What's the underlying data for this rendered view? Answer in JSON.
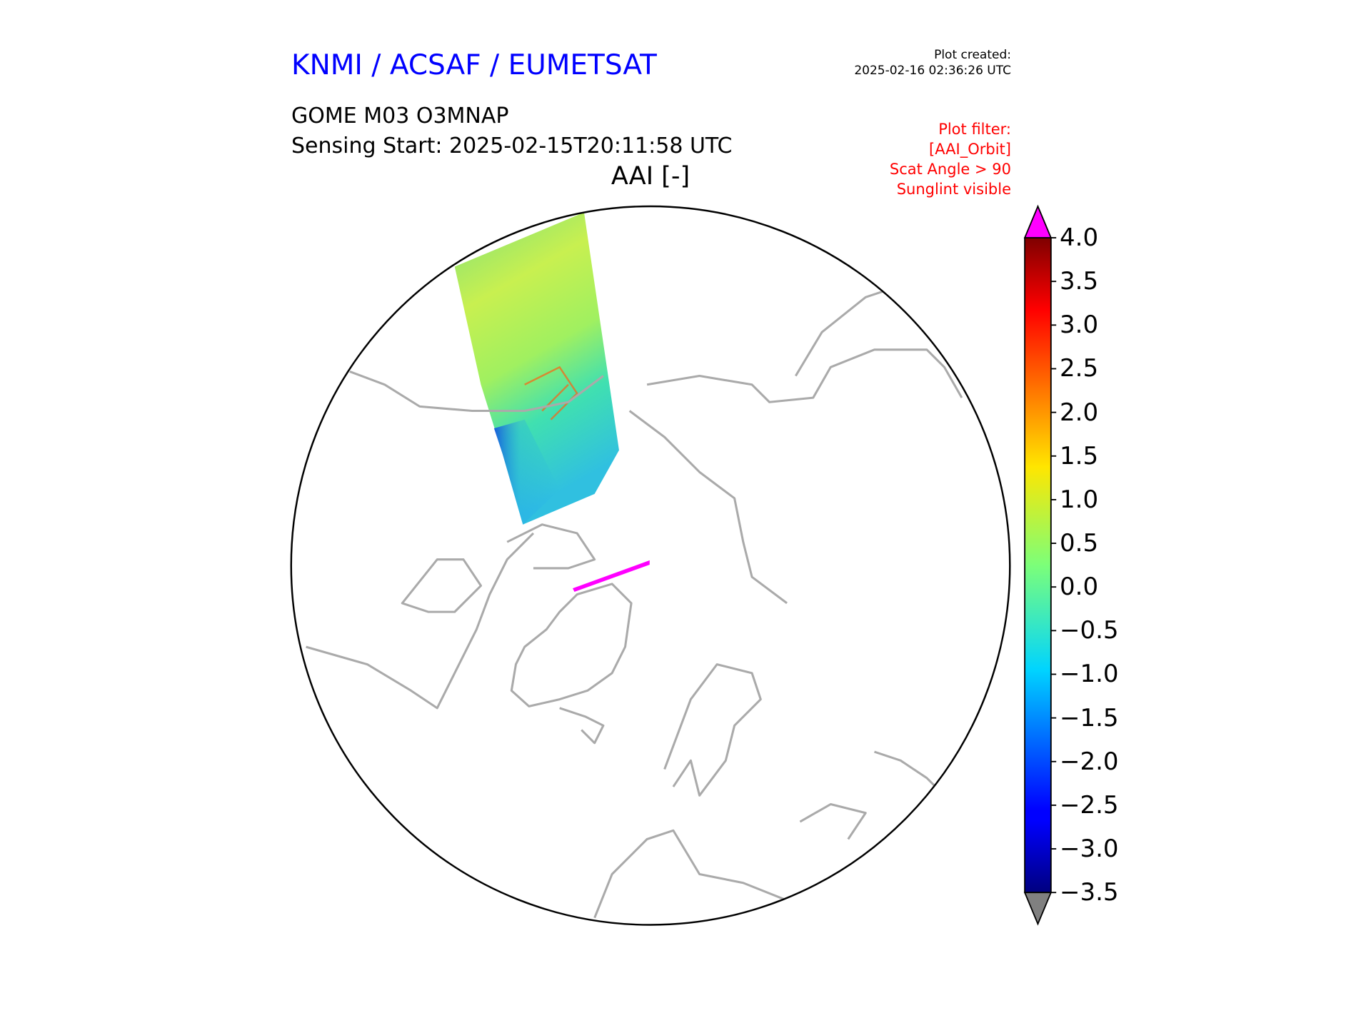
{
  "header": {
    "organization": "KNMI / ACSAF / EUMETSAT",
    "plot_created_label": "Plot created:",
    "plot_created_value": "2025-02-16 02:36:26 UTC",
    "product": "GOME M03 O3MNAP",
    "sensing_start": "Sensing Start: 2025-02-15T20:11:58 UTC",
    "filter_lines": [
      "Plot filter:",
      "[AAI_Orbit]",
      "Scat Angle > 90",
      "Sunglint visible"
    ]
  },
  "chart_data": {
    "type": "heatmap",
    "title": "AAI [-]",
    "projection": "north polar stereographic",
    "colorbar": {
      "colormap": "jet",
      "range": [
        -3.5,
        4.0
      ],
      "ticks": [
        "4.0",
        "3.5",
        "3.0",
        "2.5",
        "2.0",
        "1.5",
        "1.0",
        "0.5",
        "0.0",
        "−0.5",
        "−1.0",
        "−1.5",
        "−2.0",
        "−2.5",
        "−3.0",
        "−3.5"
      ],
      "tick_values": [
        4.0,
        3.5,
        3.0,
        2.5,
        2.0,
        1.5,
        1.0,
        0.5,
        0.0,
        -0.5,
        -1.0,
        -1.5,
        -2.0,
        -2.5,
        -3.0,
        -3.5
      ],
      "extend_over_color": "#ff00ff",
      "extend_under_color": "#808080"
    },
    "swath_typical_values": [
      -2.5,
      1.5
    ],
    "colors": {
      "coastline": "#aaaaaa",
      "boundary": "#000000",
      "over": "#ff00ff"
    }
  }
}
